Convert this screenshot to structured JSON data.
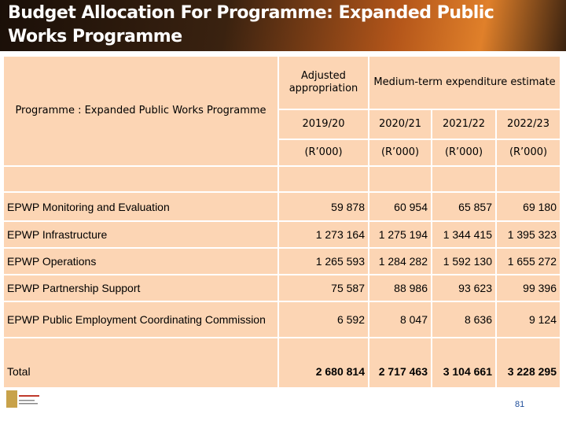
{
  "header": {
    "title": "Budget Allocation For Programme: Expanded Public Works Programme"
  },
  "table": {
    "stub_header": "Programme : Expanded Public Works Programme",
    "group_headers": [
      "Adjusted appropriation",
      "Medium-term expenditure estimate"
    ],
    "years": [
      "2019/20",
      "2020/21",
      "2021/22",
      "2022/23"
    ],
    "units": [
      "(R’000)",
      "(R’000)",
      "(R’000)",
      "(R’000)"
    ],
    "rows": [
      [
        "EPWP Monitoring and Evaluation",
        "59 878",
        "60 954",
        "65 857",
        "69 180"
      ],
      [
        "EPWP Infrastructure",
        "1 273 164",
        "1 275 194",
        "1 344 415",
        "1 395 323"
      ],
      [
        "EPWP Operations",
        "1 265 593",
        "1 284 282",
        "1 592 130",
        "1 655 272"
      ],
      [
        "EPWP Partnership Support",
        "75 587",
        "88 986",
        "93 623",
        "99 396"
      ],
      [
        "EPWP Public Employment Coordinating Commission",
        "6 592",
        "8 047",
        "8 636",
        "9 124"
      ],
      [
        "Total",
        "2 680 814",
        "2 717 463",
        "3 104 661",
        "3 228 295"
      ]
    ]
  },
  "page_number": "81"
}
